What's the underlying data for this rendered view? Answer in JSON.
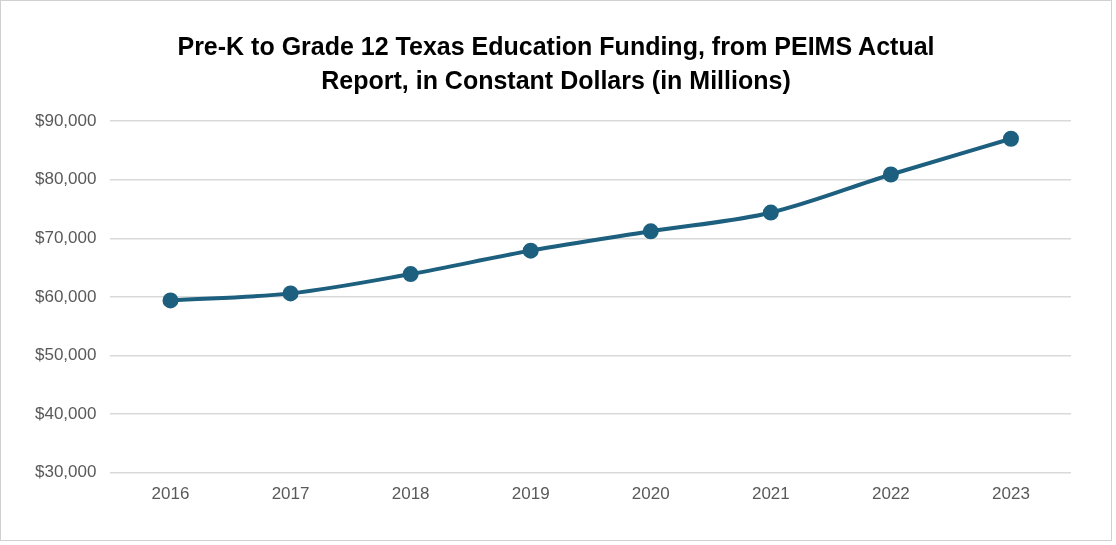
{
  "chart_data": {
    "type": "line",
    "title": "Pre-K to Grade 12 Texas Education Funding, from PEIMS Actual Report, in Constant Dollars (in Millions)",
    "categories": [
      "2016",
      "2017",
      "2018",
      "2019",
      "2020",
      "2021",
      "2022",
      "2023"
    ],
    "series": [
      {
        "color": "#1d5f7e",
        "values": [
          59400,
          60600,
          63900,
          67900,
          71200,
          74400,
          80900,
          87000
        ]
      }
    ],
    "ylim": [
      30000,
      90000
    ],
    "yticks": [
      {
        "value": 30000,
        "label": "$30,000"
      },
      {
        "value": 40000,
        "label": "$40,000"
      },
      {
        "value": 50000,
        "label": "$50,000"
      },
      {
        "value": 60000,
        "label": "$60,000"
      },
      {
        "value": 70000,
        "label": "$70,000"
      },
      {
        "value": 80000,
        "label": "$80,000"
      },
      {
        "value": 90000,
        "label": "$90,000"
      }
    ],
    "grid": "y",
    "legend": false,
    "marker": "circle",
    "line_style": "solid"
  }
}
